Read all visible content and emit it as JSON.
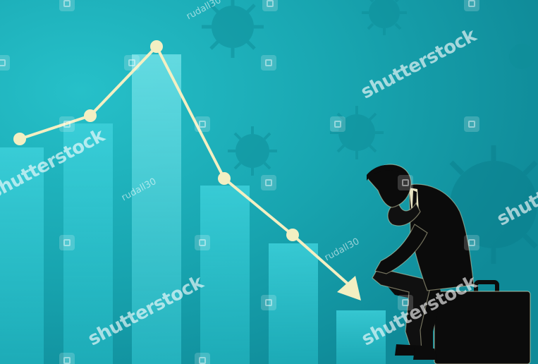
{
  "watermarks": {
    "brand": "shutterstock",
    "author": "rudall30"
  },
  "colors": {
    "background": "#17a3ae",
    "bars": "#2fc4cf",
    "trend_line": "#f3efc2",
    "figure": "#0b0b0b"
  },
  "scene": {
    "subject": "businessman-sitting-on-briefcase",
    "chart_trend": "declining"
  }
}
